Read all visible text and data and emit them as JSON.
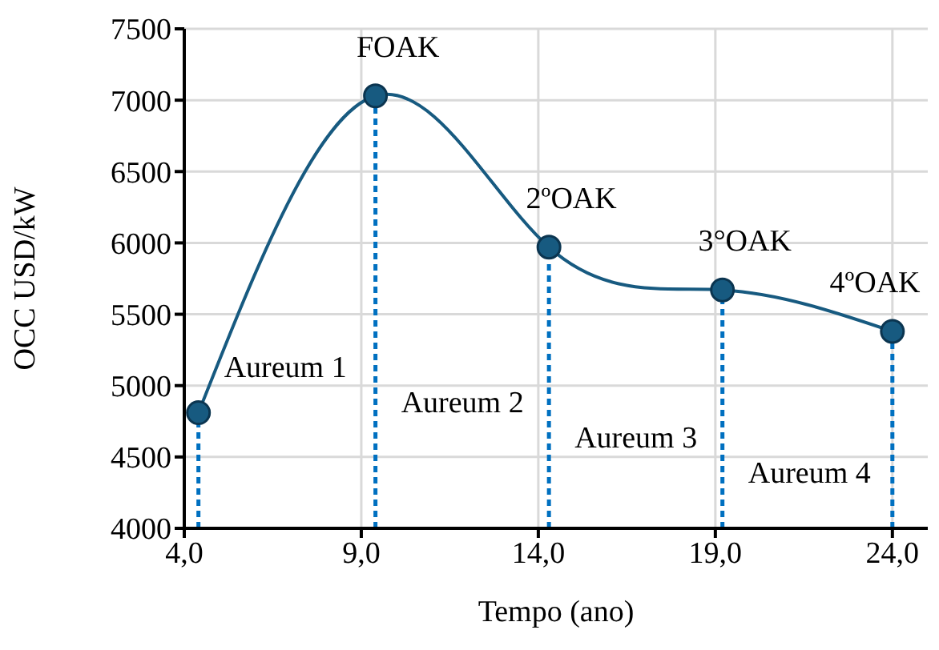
{
  "chart_data": {
    "type": "line",
    "xlabel": "Tempo (ano)",
    "ylabel": "OCC USD/kW",
    "xlim": [
      4,
      25
    ],
    "xticks": [
      {
        "value": 4,
        "label": "4,0"
      },
      {
        "value": 9,
        "label": "9,0"
      },
      {
        "value": 14,
        "label": "14,0"
      },
      {
        "value": 19,
        "label": "19,0"
      },
      {
        "value": 24,
        "label": "24,0"
      }
    ],
    "ylim": [
      4000,
      7500
    ],
    "yticks": [
      4000,
      4500,
      5000,
      5500,
      6000,
      6500,
      7000,
      7500
    ],
    "grid": true,
    "marker": "circle",
    "line_style": "solid",
    "series": [
      {
        "color": "#175a80",
        "x": [
          4.4,
          9.4,
          14.3,
          19.2,
          24.0
        ],
        "values": [
          4810,
          7030,
          5970,
          5670,
          5380
        ]
      }
    ],
    "ref_lines": [
      {
        "axis": "x",
        "value": 4.4,
        "label": "Aureum 1",
        "color": "#0070c0",
        "line_style": "dashed"
      },
      {
        "axis": "x",
        "value": 9.4,
        "label": "Aureum 2",
        "color": "#0070c0",
        "line_style": "dashed"
      },
      {
        "axis": "x",
        "value": 14.3,
        "label": "Aureum 3",
        "color": "#0070c0",
        "line_style": "dashed"
      },
      {
        "axis": "x",
        "value": 19.2,
        "label": "Aureum 4",
        "color": "#0070c0",
        "line_style": "dashed"
      },
      {
        "axis": "x",
        "value": 24.0,
        "color": "#0070c0",
        "line_style": "dashed"
      }
    ],
    "annotations": [
      {
        "text": "FOAK",
        "x": 9.4,
        "y": 7030
      },
      {
        "text": "2ºOAK",
        "x": 14.3,
        "y": 5970
      },
      {
        "text": "3°OAK",
        "x": 19.2,
        "y": 5670
      },
      {
        "text": "4ºOAK",
        "x": 24.0,
        "y": 5380
      }
    ]
  }
}
